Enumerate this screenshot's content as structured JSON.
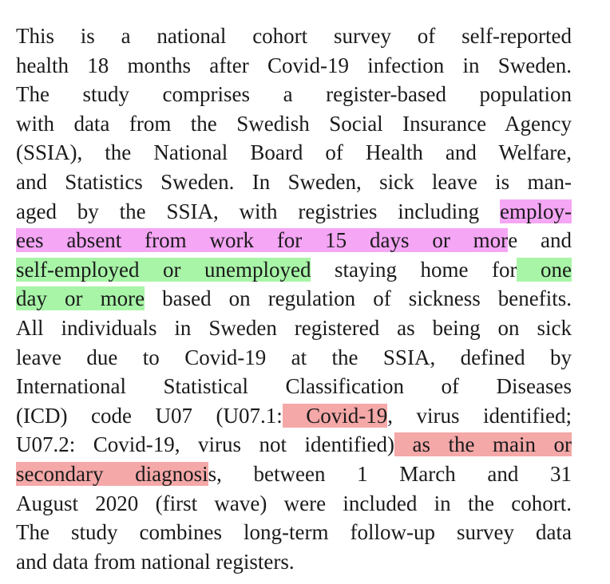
{
  "lines": [
    {
      "segments": [
        {
          "text": "This is a national cohort survey of self-reported"
        }
      ]
    },
    {
      "segments": [
        {
          "text": "health 18 months after Covid-19 infection in Sweden."
        }
      ]
    },
    {
      "segments": [
        {
          "text": "The study comprises a register-based population"
        }
      ]
    },
    {
      "segments": [
        {
          "text": "with data from the Swedish Social Insurance Agency"
        }
      ]
    },
    {
      "segments": [
        {
          "text": "(SSIA), the National Board of Health and Welfare,"
        }
      ]
    },
    {
      "segments": [
        {
          "text": "and Statistics Sweden. In Sweden, sick leave is man-"
        }
      ]
    },
    {
      "segments": [
        {
          "text": "aged by the SSIA, with registries including "
        },
        {
          "text": "employ-",
          "highlight": "#f5a6f5"
        }
      ]
    },
    {
      "segments": [
        {
          "text": "ees absent from work for 15 days or mor",
          "highlight": "#f5a6f5"
        },
        {
          "text": "e and"
        }
      ]
    },
    {
      "segments": [
        {
          "text": "self-employed or unemployed",
          "highlight": "#a8f5a8"
        },
        {
          "text": " staying home for"
        },
        {
          "text": " one",
          "highlight": "#a8f5a8"
        }
      ]
    },
    {
      "segments": [
        {
          "text": "day or more",
          "highlight": "#a8f5a8"
        },
        {
          "text": " based on regulation of sickness benefits."
        }
      ]
    },
    {
      "segments": [
        {
          "text": "All individuals in Sweden registered as being on sick"
        }
      ]
    },
    {
      "segments": [
        {
          "text": "leave due to Covid-19 at the SSIA, defined by"
        }
      ]
    },
    {
      "segments": [
        {
          "text": "International Statistical Classification of Diseases"
        }
      ]
    },
    {
      "segments": [
        {
          "text": "(ICD) code U07 (U07.1:"
        },
        {
          "text": " Covid-19",
          "highlight": "#f5a8a8"
        },
        {
          "text": ", virus identified;"
        }
      ]
    },
    {
      "segments": [
        {
          "text": "U07.2: Covid-19, virus not identified)"
        },
        {
          "text": " as the main or",
          "highlight": "#f5a8a8"
        }
      ]
    },
    {
      "segments": [
        {
          "text": "secondary diagnosi",
          "highlight": "#f5a8a8"
        },
        {
          "text": "s, between 1 March and 31"
        }
      ]
    },
    {
      "segments": [
        {
          "text": "August 2020 (first wave) were included in the cohort."
        }
      ]
    },
    {
      "segments": [
        {
          "text": "The study combines long-term follow-up survey data"
        }
      ]
    },
    {
      "segments": [
        {
          "text": "and data from national registers."
        }
      ]
    }
  ]
}
